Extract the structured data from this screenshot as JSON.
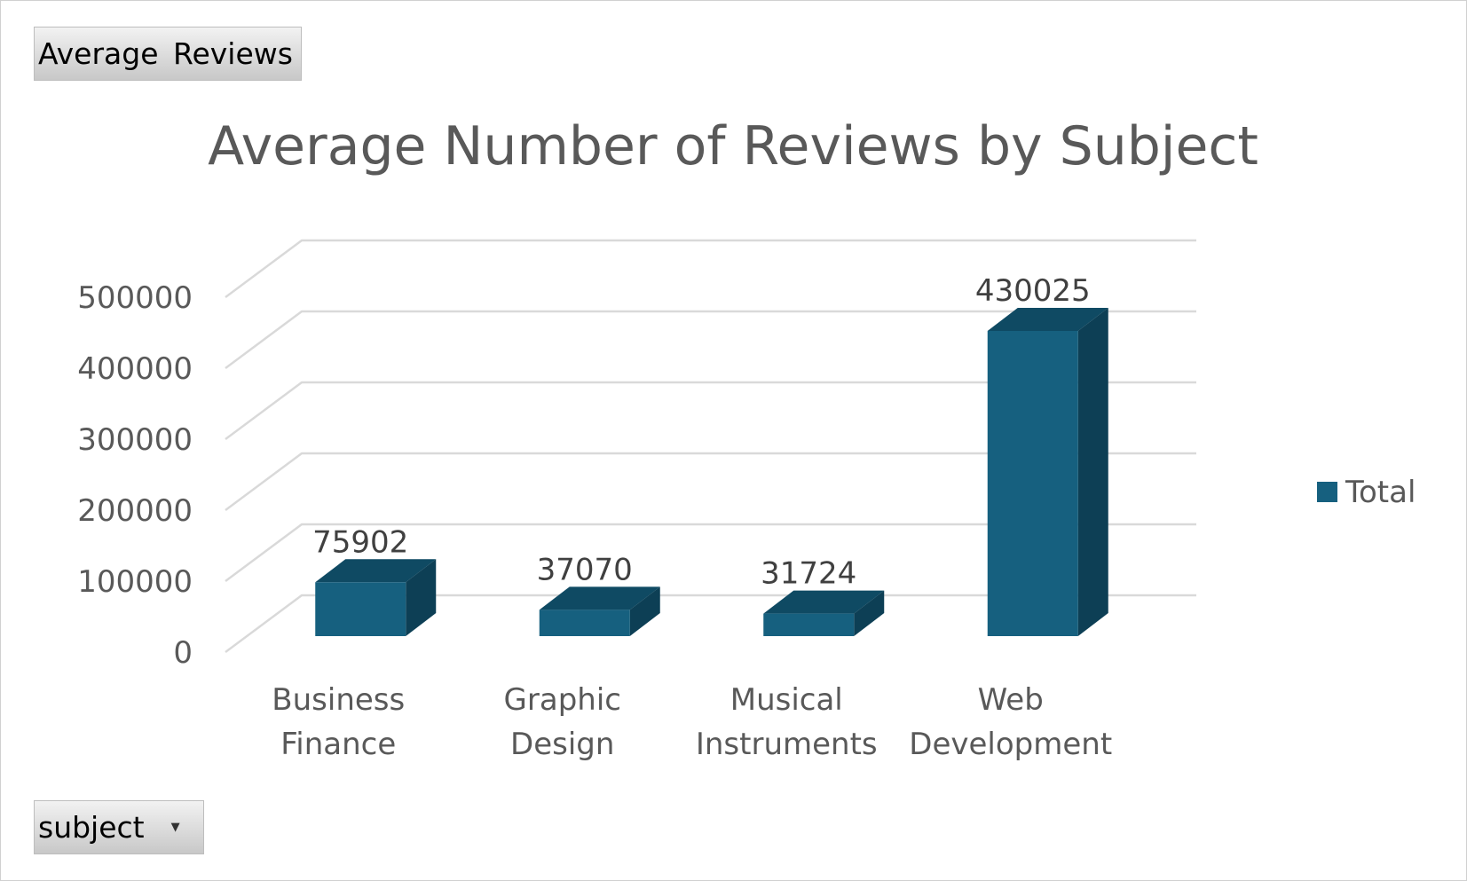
{
  "pivot": {
    "value_field_label": "Average  Reviews",
    "axis_field_label": "subject"
  },
  "chart_data": {
    "type": "bar",
    "title": "Average Number of Reviews by Subject",
    "categories": [
      "Business Finance",
      "Graphic Design",
      "Musical Instruments",
      "Web Development"
    ],
    "category_lines": [
      [
        "Business",
        "Finance"
      ],
      [
        "Graphic",
        "Design"
      ],
      [
        "Musical",
        "Instruments"
      ],
      [
        "Web",
        "Development"
      ]
    ],
    "series": [
      {
        "name": "Total",
        "values": [
          75902,
          37070,
          31724,
          430025
        ]
      }
    ],
    "data_labels": [
      "75902",
      "37070",
      "31724",
      "430025"
    ],
    "ylim": [
      0,
      500000
    ],
    "yticks": [
      0,
      100000,
      200000,
      300000,
      400000,
      500000
    ],
    "ytick_labels": [
      "0",
      "100000",
      "200000",
      "300000",
      "400000",
      "500000"
    ],
    "grid": true,
    "style": "3d-clustered-column",
    "legend_position": "right",
    "colors": {
      "front": "#16607f",
      "side": "#0d3f55",
      "top": "#0f4a63",
      "grid": "#d9d9d9"
    }
  }
}
